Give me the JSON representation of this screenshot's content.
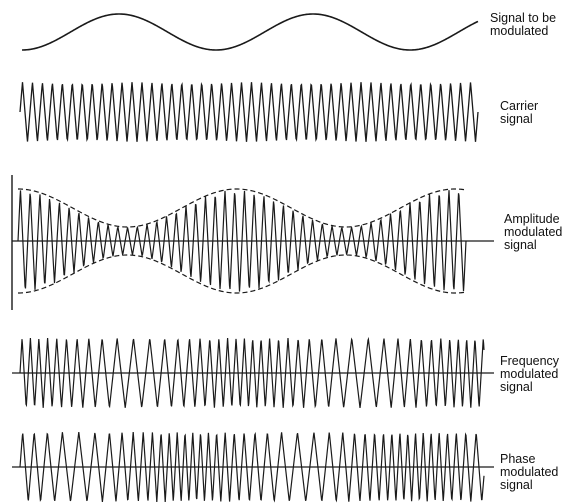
{
  "colors": {
    "waveform": "#1a1a1a",
    "envelope": "#1a1a1a",
    "axis": "#1a1a1a",
    "background": "#ffffff"
  },
  "panels": [
    {
      "id": "message",
      "label_lines": [
        "Signal to be",
        "modulated"
      ],
      "kind": "message"
    },
    {
      "id": "carrier",
      "label_lines": [
        "Carrier",
        "signal"
      ],
      "kind": "carrier"
    },
    {
      "id": "am",
      "label_lines": [
        "Amplitude",
        "modulated",
        "signal"
      ],
      "kind": "am"
    },
    {
      "id": "fm",
      "label_lines": [
        "Frequency",
        "modulated",
        "signal"
      ],
      "kind": "fm"
    },
    {
      "id": "pm",
      "label_lines": [
        "Phase",
        "modulated",
        "signal"
      ],
      "kind": "pm"
    }
  ]
}
